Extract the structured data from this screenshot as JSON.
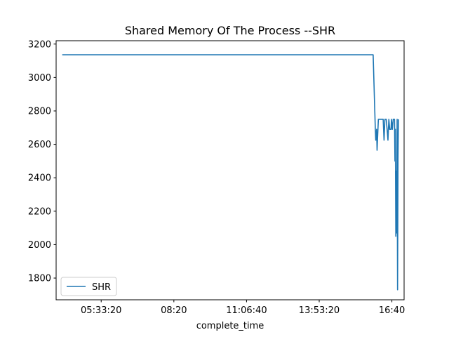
{
  "chart_data": {
    "type": "line",
    "title": "Shared Memory Of The Process --SHR",
    "xlabel": "complete_time",
    "ylabel": "",
    "x_axis_kind": "time",
    "xlim": [
      "03:50:00",
      "17:08:00"
    ],
    "ylim": [
      1670,
      3220
    ],
    "x_ticks": [
      "05:33:20",
      "08:20",
      "11:06:40",
      "13:53:20",
      "16:40"
    ],
    "y_ticks": [
      1800,
      2000,
      2200,
      2400,
      2600,
      2800,
      3000,
      3200
    ],
    "grid": false,
    "legend_position": "lower-left",
    "colors": {
      "series": "#1f77b4",
      "axes": "#000000",
      "background": "#ffffff"
    },
    "series": [
      {
        "name": "SHR",
        "points": [
          [
            "04:04:00",
            3136
          ],
          [
            "15:57:00",
            3136
          ],
          [
            "16:02:00",
            2690
          ],
          [
            "16:03:00",
            2625
          ],
          [
            "16:05:00",
            2690
          ],
          [
            "16:06:00",
            2565
          ],
          [
            "16:08:00",
            2690
          ],
          [
            "16:09:00",
            2750
          ],
          [
            "16:20:00",
            2750
          ],
          [
            "16:22:00",
            2625
          ],
          [
            "16:24:00",
            2750
          ],
          [
            "16:27:00",
            2750
          ],
          [
            "16:29:00",
            2690
          ],
          [
            "16:31:00",
            2625
          ],
          [
            "16:33:00",
            2750
          ],
          [
            "16:35:00",
            2690
          ],
          [
            "16:38:00",
            2690
          ],
          [
            "16:39:00",
            2750
          ],
          [
            "16:41:00",
            2690
          ],
          [
            "16:43:00",
            2750
          ],
          [
            "16:46:00",
            2750
          ],
          [
            "16:47:00",
            2500
          ],
          [
            "16:48:00",
            2690
          ],
          [
            "16:49:00",
            2050
          ],
          [
            "16:50:00",
            2440
          ],
          [
            "16:51:00",
            2070
          ],
          [
            "16:52:00",
            2750
          ],
          [
            "16:53:00",
            1730
          ],
          [
            "16:54:00",
            2510
          ],
          [
            "16:55:00",
            2750
          ]
        ]
      }
    ]
  }
}
